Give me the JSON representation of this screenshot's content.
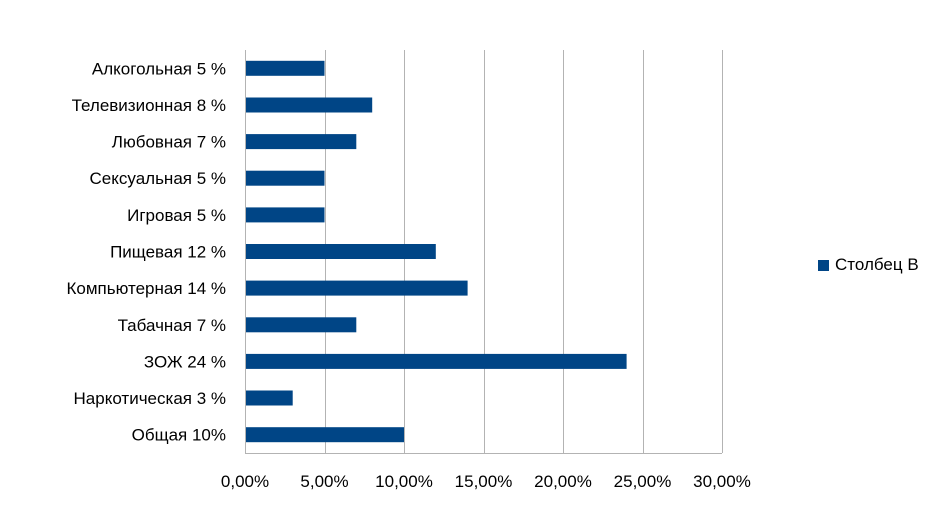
{
  "chart_data": {
    "type": "bar",
    "orientation": "horizontal",
    "categories": [
      "Алкогольная 5 %",
      "Телевизионная 8 %",
      "Любовная 7 %",
      "Сексуальная 5 %",
      "Игровая 5 %",
      "Пищевая 12 %",
      "Компьютерная 14 %",
      "Табачная 7 %",
      "ЗОЖ 24 %",
      "Наркотическая 3 %",
      "Общая 10%"
    ],
    "series": [
      {
        "name": "Столбец B",
        "values": [
          5,
          8,
          7,
          5,
          5,
          12,
          14,
          7,
          24,
          3,
          10
        ],
        "color": "#004586"
      }
    ],
    "xlim": [
      0,
      30
    ],
    "x_ticks": [
      "0,00%",
      "5,00%",
      "10,00%",
      "15,00%",
      "20,00%",
      "25,00%",
      "30,00%"
    ],
    "grid": true,
    "legend_position": "right"
  }
}
